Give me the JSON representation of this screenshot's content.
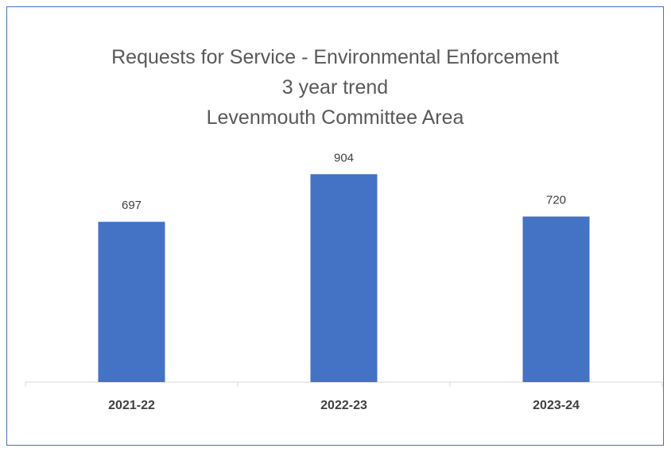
{
  "chart_data": {
    "type": "bar",
    "title_lines": [
      "Requests for Service - Environmental Enforcement",
      "3 year trend",
      "Levenmouth Committee Area"
    ],
    "categories": [
      "2021-22",
      "2022-23",
      "2023-24"
    ],
    "values": [
      697,
      904,
      720
    ],
    "xlabel": "",
    "ylabel": "",
    "ylim": [
      0,
      1000
    ],
    "grid": false,
    "legend": "none",
    "bar_color": "#4472c4"
  }
}
